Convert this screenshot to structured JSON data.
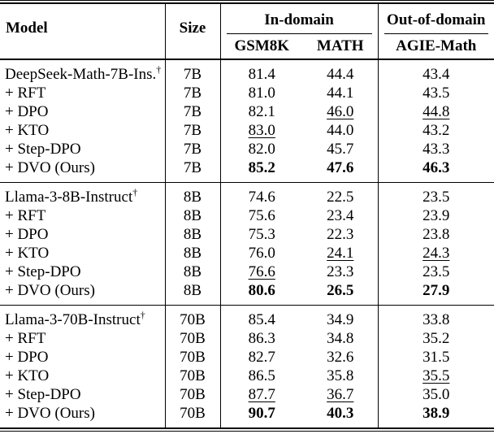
{
  "colors": {
    "text": "#000000",
    "background": "#ffffff",
    "rule": "#000000"
  },
  "table": {
    "header": {
      "model": "Model",
      "size": "Size",
      "group_in_domain": "In-domain",
      "group_out_of_domain": "Out-of-domain",
      "col_gsm8k": "GSM8K",
      "col_math": "MATH",
      "col_agie_math": "AGIE-Math"
    },
    "sections": [
      {
        "rows": [
          {
            "model": "DeepSeek-Math-7B-Ins.",
            "dagger": "†",
            "size": "7B",
            "scores": [
              {
                "value": "81.4",
                "style": "plain"
              },
              {
                "value": "44.4",
                "style": "plain"
              },
              {
                "value": "43.4",
                "style": "plain"
              }
            ]
          },
          {
            "model": "+ RFT",
            "dagger": "",
            "size": "7B",
            "scores": [
              {
                "value": "81.0",
                "style": "plain"
              },
              {
                "value": "44.1",
                "style": "plain"
              },
              {
                "value": "43.5",
                "style": "plain"
              }
            ]
          },
          {
            "model": "+ DPO",
            "dagger": "",
            "size": "7B",
            "scores": [
              {
                "value": "82.1",
                "style": "plain"
              },
              {
                "value": "46.0",
                "style": "underline"
              },
              {
                "value": "44.8",
                "style": "underline"
              }
            ]
          },
          {
            "model": "+ KTO",
            "dagger": "",
            "size": "7B",
            "scores": [
              {
                "value": "83.0",
                "style": "underline"
              },
              {
                "value": "44.0",
                "style": "plain"
              },
              {
                "value": "43.2",
                "style": "plain"
              }
            ]
          },
          {
            "model": "+ Step-DPO",
            "dagger": "",
            "size": "7B",
            "scores": [
              {
                "value": "82.0",
                "style": "plain"
              },
              {
                "value": "45.7",
                "style": "plain"
              },
              {
                "value": "43.3",
                "style": "plain"
              }
            ]
          },
          {
            "model": "+ DVO (Ours)",
            "dagger": "",
            "size": "7B",
            "scores": [
              {
                "value": "85.2",
                "style": "bold"
              },
              {
                "value": "47.6",
                "style": "bold"
              },
              {
                "value": "46.3",
                "style": "bold"
              }
            ]
          }
        ]
      },
      {
        "rows": [
          {
            "model": "Llama-3-8B-Instruct",
            "dagger": "†",
            "size": "8B",
            "scores": [
              {
                "value": "74.6",
                "style": "plain"
              },
              {
                "value": "22.5",
                "style": "plain"
              },
              {
                "value": "23.5",
                "style": "plain"
              }
            ]
          },
          {
            "model": "+ RFT",
            "dagger": "",
            "size": "8B",
            "scores": [
              {
                "value": "75.6",
                "style": "plain"
              },
              {
                "value": "23.4",
                "style": "plain"
              },
              {
                "value": "23.9",
                "style": "plain"
              }
            ]
          },
          {
            "model": "+ DPO",
            "dagger": "",
            "size": "8B",
            "scores": [
              {
                "value": "75.3",
                "style": "plain"
              },
              {
                "value": "22.3",
                "style": "plain"
              },
              {
                "value": "23.8",
                "style": "plain"
              }
            ]
          },
          {
            "model": "+ KTO",
            "dagger": "",
            "size": "8B",
            "scores": [
              {
                "value": "76.0",
                "style": "plain"
              },
              {
                "value": "24.1",
                "style": "underline"
              },
              {
                "value": "24.3",
                "style": "underline"
              }
            ]
          },
          {
            "model": "+ Step-DPO",
            "dagger": "",
            "size": "8B",
            "scores": [
              {
                "value": "76.6",
                "style": "underline"
              },
              {
                "value": "23.3",
                "style": "plain"
              },
              {
                "value": "23.5",
                "style": "plain"
              }
            ]
          },
          {
            "model": "+ DVO (Ours)",
            "dagger": "",
            "size": "8B",
            "scores": [
              {
                "value": "80.6",
                "style": "bold"
              },
              {
                "value": "26.5",
                "style": "bold"
              },
              {
                "value": "27.9",
                "style": "bold"
              }
            ]
          }
        ]
      },
      {
        "rows": [
          {
            "model": "Llama-3-70B-Instruct",
            "dagger": "†",
            "size": "70B",
            "scores": [
              {
                "value": "85.4",
                "style": "plain"
              },
              {
                "value": "34.9",
                "style": "plain"
              },
              {
                "value": "33.8",
                "style": "plain"
              }
            ]
          },
          {
            "model": "+ RFT",
            "dagger": "",
            "size": "70B",
            "scores": [
              {
                "value": "86.3",
                "style": "plain"
              },
              {
                "value": "34.8",
                "style": "plain"
              },
              {
                "value": "35.2",
                "style": "plain"
              }
            ]
          },
          {
            "model": "+ DPO",
            "dagger": "",
            "size": "70B",
            "scores": [
              {
                "value": "82.7",
                "style": "plain"
              },
              {
                "value": "32.6",
                "style": "plain"
              },
              {
                "value": "31.5",
                "style": "plain"
              }
            ]
          },
          {
            "model": "+ KTO",
            "dagger": "",
            "size": "70B",
            "scores": [
              {
                "value": "86.5",
                "style": "plain"
              },
              {
                "value": "35.8",
                "style": "plain"
              },
              {
                "value": "35.5",
                "style": "underline"
              }
            ]
          },
          {
            "model": "+ Step-DPO",
            "dagger": "",
            "size": "70B",
            "scores": [
              {
                "value": "87.7",
                "style": "underline"
              },
              {
                "value": "36.7",
                "style": "underline"
              },
              {
                "value": "35.0",
                "style": "plain"
              }
            ]
          },
          {
            "model": "+ DVO (Ours)",
            "dagger": "",
            "size": "70B",
            "scores": [
              {
                "value": "90.7",
                "style": "bold"
              },
              {
                "value": "40.3",
                "style": "bold"
              },
              {
                "value": "38.9",
                "style": "bold"
              }
            ]
          }
        ]
      }
    ]
  }
}
